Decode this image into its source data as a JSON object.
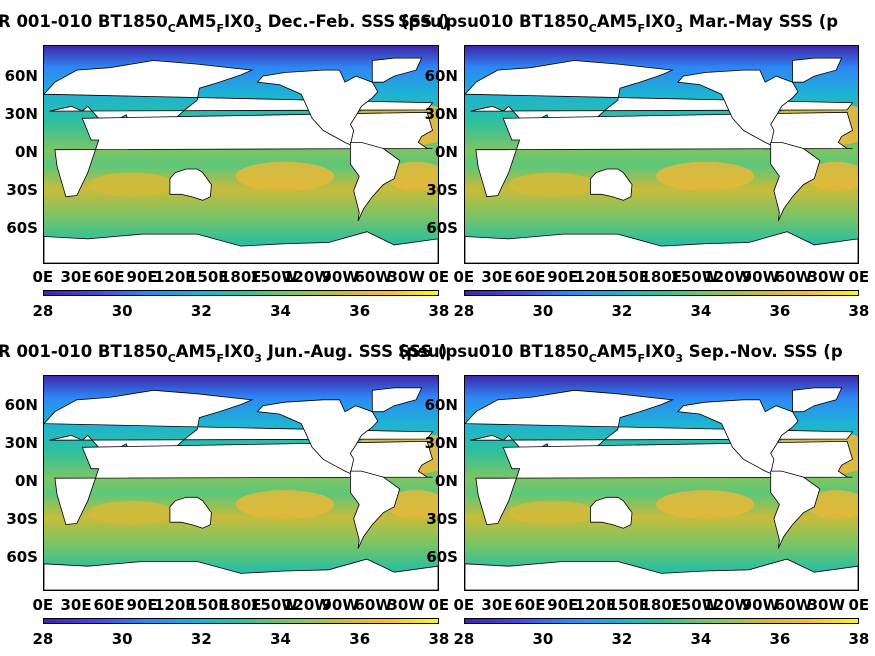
{
  "panels": [
    {
      "title_a": "R 001-010 BT1850",
      "sub1": "C",
      "title_b": "AM5",
      "sub2": "F",
      "title_c": "IX0",
      "sub3": "3",
      "title_d": " Dec.-Feb. SSS (psu)"
    },
    {
      "title_a": "SSS (psu010 BT1850",
      "sub1": "C",
      "title_b": "AM5",
      "sub2": "F",
      "title_c": "IX0",
      "sub3": "3",
      "title_d": " Mar.-May SSS (p"
    },
    {
      "title_a": "R 001-010 BT1850",
      "sub1": "C",
      "title_b": "AM5",
      "sub2": "F",
      "title_c": "IX0",
      "sub3": "3",
      "title_d": " Jun.-Aug. SSS (psu)"
    },
    {
      "title_a": "SSS (psu010 BT1850",
      "sub1": "C",
      "title_b": "AM5",
      "sub2": "F",
      "title_c": "IX0",
      "sub3": "3",
      "title_d": " Sep.-Nov. SSS (p"
    }
  ],
  "lat_labels": [
    "60N",
    "30N",
    "0N",
    "30S",
    "60S"
  ],
  "lon_labels": [
    "0E",
    "30E",
    "60E",
    "90E",
    "120E",
    "150E",
    "180E",
    "150W",
    "120W",
    "90W",
    "60W",
    "30W",
    "0E"
  ],
  "colorbar": {
    "ticks": [
      "28",
      "30",
      "32",
      "34",
      "36",
      "38"
    ],
    "min": 28,
    "max": 38,
    "colormap": "parula"
  },
  "colors": {
    "low": "#3e26a8",
    "mid": "#2ec09d",
    "high": "#f9fb15",
    "land": "#ffffff"
  }
}
